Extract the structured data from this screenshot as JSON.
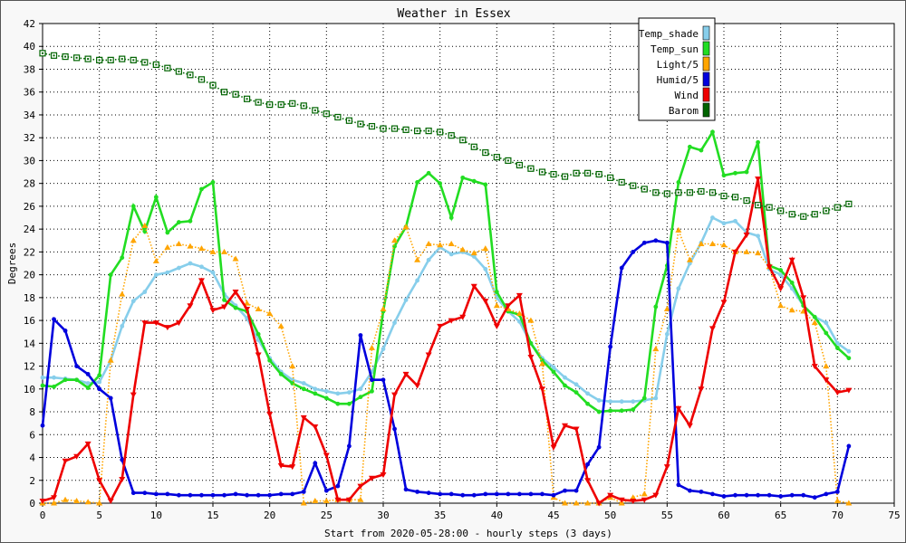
{
  "chart_data": {
    "type": "line",
    "title": "Weather in Essex",
    "xlabel": "Start from 2020-05-28:00 - hourly steps (3 days)",
    "ylabel": "Degrees",
    "xlim": [
      0,
      75
    ],
    "ylim": [
      0,
      42
    ],
    "xticks": [
      0,
      5,
      10,
      15,
      20,
      25,
      30,
      35,
      40,
      45,
      50,
      55,
      60,
      65,
      70,
      75
    ],
    "yticks": [
      0,
      2,
      4,
      6,
      8,
      10,
      12,
      14,
      16,
      18,
      20,
      22,
      24,
      26,
      28,
      30,
      32,
      34,
      36,
      38,
      40,
      42
    ],
    "grid": true,
    "legend_position": "top-right",
    "series": [
      {
        "name": "Temp_shade",
        "color": "#87ceeb",
        "style": "solid",
        "marker": "dot",
        "values": [
          11.0,
          11.0,
          10.9,
          10.8,
          10.5,
          10.6,
          12.5,
          15.5,
          17.7,
          18.5,
          20.0,
          20.2,
          20.6,
          21.0,
          20.7,
          20.2,
          18.3,
          17.3,
          16.2,
          14.3,
          12.7,
          11.5,
          10.8,
          10.5,
          10.0,
          9.8,
          9.6,
          9.7,
          10.0,
          11.5,
          13.5,
          15.8,
          17.8,
          19.5,
          21.3,
          22.4,
          21.8,
          22.0,
          21.6,
          20.5,
          18.0,
          16.8,
          15.9,
          14.0,
          12.7,
          11.9,
          11.0,
          10.4,
          9.6,
          9.0,
          8.9,
          8.9,
          8.9,
          9.0,
          9.2,
          14.8,
          18.8,
          21.0,
          22.8,
          25.0,
          24.5,
          24.7,
          23.7,
          23.4,
          20.5,
          20.0,
          18.8,
          17.3,
          16.3,
          15.8,
          14.0,
          13.3
        ]
      },
      {
        "name": "Temp_sun",
        "color": "#22dd22",
        "style": "solid",
        "marker": "dot",
        "values": [
          10.3,
          10.2,
          10.8,
          10.8,
          10.1,
          11.2,
          20.0,
          21.5,
          26.0,
          23.8,
          26.8,
          23.7,
          24.6,
          24.7,
          27.5,
          28.1,
          17.8,
          17.1,
          16.8,
          14.8,
          12.5,
          11.3,
          10.5,
          10.0,
          9.6,
          9.2,
          8.7,
          8.7,
          9.3,
          9.8,
          16.8,
          22.5,
          24.2,
          28.1,
          28.9,
          28.0,
          25.0,
          28.5,
          28.2,
          27.9,
          18.5,
          16.8,
          16.5,
          14.0,
          12.5,
          11.5,
          10.3,
          9.7,
          8.7,
          8.0,
          8.1,
          8.1,
          8.2,
          9.2,
          17.2,
          20.8,
          28.1,
          31.2,
          30.9,
          32.5,
          28.7,
          28.9,
          29.0,
          31.6,
          20.8,
          20.4,
          19.3,
          17.3,
          16.3,
          14.9,
          13.6,
          12.7
        ]
      },
      {
        "name": "Light/5",
        "color": "#ffa500",
        "style": "dotted",
        "marker": "triangle-up",
        "values": [
          0.0,
          0.0,
          0.3,
          0.2,
          0.1,
          0.0,
          12.5,
          18.3,
          23.0,
          24.3,
          21.2,
          22.4,
          22.7,
          22.5,
          22.3,
          22.0,
          22.0,
          21.4,
          17.5,
          17.0,
          16.6,
          15.5,
          12.0,
          0.0,
          0.2,
          0.2,
          0.3,
          0.3,
          0.3,
          13.6,
          17.0,
          23.0,
          24.2,
          21.3,
          22.7,
          22.6,
          22.7,
          22.2,
          21.9,
          22.3,
          17.3,
          17.0,
          16.6,
          16.0,
          12.2,
          0.5,
          0.0,
          0.0,
          0.0,
          0.0,
          0.5,
          0.0,
          0.5,
          0.8,
          13.5,
          17.0,
          23.9,
          21.3,
          22.7,
          22.7,
          22.6,
          22.0,
          22.0,
          21.9,
          20.7,
          17.3,
          16.9,
          16.8,
          15.8,
          12.0,
          0.2,
          0.0
        ]
      },
      {
        "name": "Humid/5",
        "color": "#0000dd",
        "style": "solid",
        "marker": "dot",
        "values": [
          6.8,
          16.1,
          15.1,
          12.0,
          11.3,
          10.0,
          9.2,
          3.8,
          0.9,
          0.9,
          0.8,
          0.8,
          0.7,
          0.7,
          0.7,
          0.7,
          0.7,
          0.8,
          0.7,
          0.7,
          0.7,
          0.8,
          0.8,
          1.0,
          3.5,
          1.1,
          1.5,
          5.0,
          14.7,
          10.8,
          10.8,
          6.5,
          1.2,
          1.0,
          0.9,
          0.8,
          0.8,
          0.7,
          0.7,
          0.8,
          0.8,
          0.8,
          0.8,
          0.8,
          0.8,
          0.7,
          1.1,
          1.1,
          3.4,
          4.9,
          13.7,
          20.6,
          22.0,
          22.8,
          23.0,
          22.8,
          1.6,
          1.1,
          1.0,
          0.8,
          0.6,
          0.7,
          0.7,
          0.7,
          0.7,
          0.6,
          0.7,
          0.7,
          0.5,
          0.8,
          1.0,
          5.0
        ]
      },
      {
        "name": "Wind",
        "color": "#ee0000",
        "style": "solid",
        "marker": "triangle-down",
        "values": [
          0.2,
          0.5,
          3.7,
          4.1,
          5.2,
          2.0,
          0.2,
          2.1,
          9.5,
          15.8,
          15.8,
          15.4,
          15.8,
          17.3,
          19.5,
          16.9,
          17.2,
          18.5,
          17.0,
          13.0,
          7.8,
          3.3,
          3.2,
          7.5,
          6.7,
          4.2,
          0.3,
          0.3,
          1.5,
          2.2,
          2.5,
          9.5,
          11.3,
          10.3,
          13.0,
          15.5,
          16.0,
          16.3,
          19.0,
          17.7,
          15.5,
          17.3,
          18.2,
          12.8,
          10.0,
          4.9,
          6.8,
          6.5,
          2.0,
          0.0,
          0.7,
          0.3,
          0.2,
          0.3,
          0.7,
          3.2,
          8.3,
          6.8,
          10.0,
          15.3,
          17.6,
          22.0,
          23.5,
          28.4,
          20.7,
          18.8,
          21.3,
          18.0,
          12.0,
          10.8,
          9.7,
          9.9
        ]
      },
      {
        "name": "Barom",
        "color": "#006400",
        "style": "dotted",
        "marker": "square",
        "values": [
          39.4,
          39.2,
          39.1,
          39.0,
          38.9,
          38.8,
          38.8,
          38.9,
          38.8,
          38.6,
          38.4,
          38.1,
          37.8,
          37.5,
          37.1,
          36.6,
          36.0,
          35.8,
          35.4,
          35.1,
          34.9,
          34.9,
          35.0,
          34.8,
          34.4,
          34.1,
          33.8,
          33.5,
          33.2,
          33.0,
          32.8,
          32.8,
          32.7,
          32.6,
          32.6,
          32.5,
          32.2,
          31.8,
          31.2,
          30.7,
          30.3,
          30.0,
          29.6,
          29.3,
          29.0,
          28.8,
          28.6,
          28.9,
          28.9,
          28.8,
          28.5,
          28.1,
          27.8,
          27.5,
          27.2,
          27.1,
          27.2,
          27.2,
          27.3,
          27.2,
          26.9,
          26.8,
          26.5,
          26.1,
          25.9,
          25.6,
          25.3,
          25.1,
          25.3,
          25.6,
          25.9,
          26.2
        ]
      }
    ]
  }
}
